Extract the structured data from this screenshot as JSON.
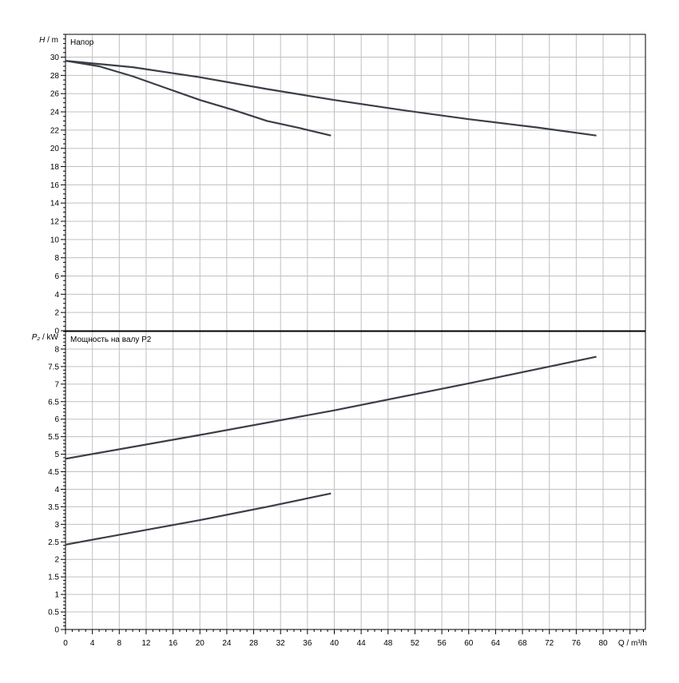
{
  "chart_data": [
    {
      "type": "line",
      "title": "Напор",
      "ylabel_sym": "H",
      "ylabel_unit": " / m",
      "xlabel": "Q / m³/h",
      "xlim": [
        0,
        86.3
      ],
      "ylim": [
        0,
        32.5
      ],
      "xticks": [
        0,
        4,
        8,
        12,
        16,
        20,
        24,
        28,
        32,
        36,
        40,
        44,
        48,
        52,
        56,
        60,
        64,
        68,
        72,
        76,
        80
      ],
      "yticks": [
        0,
        2,
        4,
        6,
        8,
        10,
        12,
        14,
        16,
        18,
        20,
        22,
        24,
        26,
        28,
        30
      ],
      "grid": true,
      "line_color": "#3a3f47",
      "series": [
        {
          "x": [
            0,
            10,
            20,
            30,
            40,
            50,
            60,
            70,
            79
          ],
          "y": [
            29.6,
            28.9,
            27.8,
            26.5,
            25.3,
            24.2,
            23.2,
            22.3,
            21.4
          ]
        },
        {
          "x": [
            0,
            5,
            10,
            15,
            20,
            25,
            30,
            35,
            39.5
          ],
          "y": [
            29.6,
            29.0,
            27.9,
            26.6,
            25.3,
            24.2,
            23.0,
            22.2,
            21.4
          ]
        }
      ]
    },
    {
      "type": "line",
      "title": "Мощность на валу P2",
      "ylabel_sym": "P₂",
      "ylabel_unit": " / kW",
      "xlabel": "Q / m³/h",
      "xlim": [
        0,
        86.3
      ],
      "ylim": [
        0,
        8.5
      ],
      "xticks": [
        0,
        4,
        8,
        12,
        16,
        20,
        24,
        28,
        32,
        36,
        40,
        44,
        48,
        52,
        56,
        60,
        64,
        68,
        72,
        76,
        80
      ],
      "yticks": [
        "0",
        "0.5",
        "1",
        "1.5",
        "2",
        "2.5",
        "3",
        "3.5",
        "4",
        "4.5",
        "5",
        "5.5",
        "6",
        "6.5",
        "7",
        "7.5",
        "8"
      ],
      "grid": true,
      "line_color": "#3a3f47",
      "series": [
        {
          "x": [
            0,
            20,
            40,
            60,
            79
          ],
          "y": [
            4.87,
            5.55,
            6.25,
            7.02,
            7.78
          ]
        },
        {
          "x": [
            0,
            10,
            20,
            30,
            39.5
          ],
          "y": [
            2.42,
            2.77,
            3.12,
            3.5,
            3.88
          ]
        }
      ]
    }
  ]
}
